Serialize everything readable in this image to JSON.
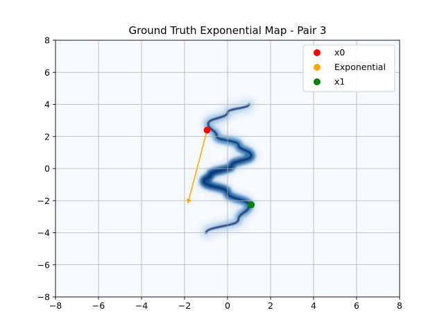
{
  "chart_data": {
    "type": "scatter",
    "title": "Ground Truth Exponential Map - Pair 3",
    "xlabel": "",
    "ylabel": "",
    "xlim": [
      -8,
      8
    ],
    "ylim": [
      -8,
      8
    ],
    "xticks": [
      -8,
      -6,
      -4,
      -2,
      0,
      2,
      4,
      6,
      8
    ],
    "yticks": [
      -8,
      -6,
      -4,
      -2,
      0,
      2,
      4,
      6,
      8
    ],
    "grid": true,
    "background": {
      "type": "density-heatmap",
      "colormap": "Blues",
      "description_points": [
        {
          "y": 4.0,
          "x": 1.0
        },
        {
          "y": 3.5,
          "x": 0.0
        },
        {
          "y": 2.8,
          "x": -0.9
        },
        {
          "y": 2.0,
          "x": -0.5
        },
        {
          "y": 1.5,
          "x": 0.5
        },
        {
          "y": 0.8,
          "x": 1.1
        },
        {
          "y": 0.2,
          "x": 0.2
        },
        {
          "y": -0.4,
          "x": -0.8
        },
        {
          "y": -0.8,
          "x": -1.1
        },
        {
          "y": -1.5,
          "x": 0.0
        },
        {
          "y": -2.3,
          "x": 1.0
        },
        {
          "y": -3.2,
          "x": 0.5
        },
        {
          "y": -4.0,
          "x": -1.0
        }
      ]
    },
    "series": [
      {
        "name": "x0",
        "color": "#ff0000",
        "points": [
          {
            "x": -0.95,
            "y": 2.4
          }
        ]
      },
      {
        "name": "Exponential",
        "color": "#ffa500",
        "arrow": {
          "from": [
            -0.95,
            2.4
          ],
          "to": [
            -1.85,
            -2.2
          ]
        }
      },
      {
        "name": "x1",
        "color": "#008000",
        "points": [
          {
            "x": 1.1,
            "y": -2.25
          }
        ]
      }
    ],
    "legend_position": "top-right"
  }
}
